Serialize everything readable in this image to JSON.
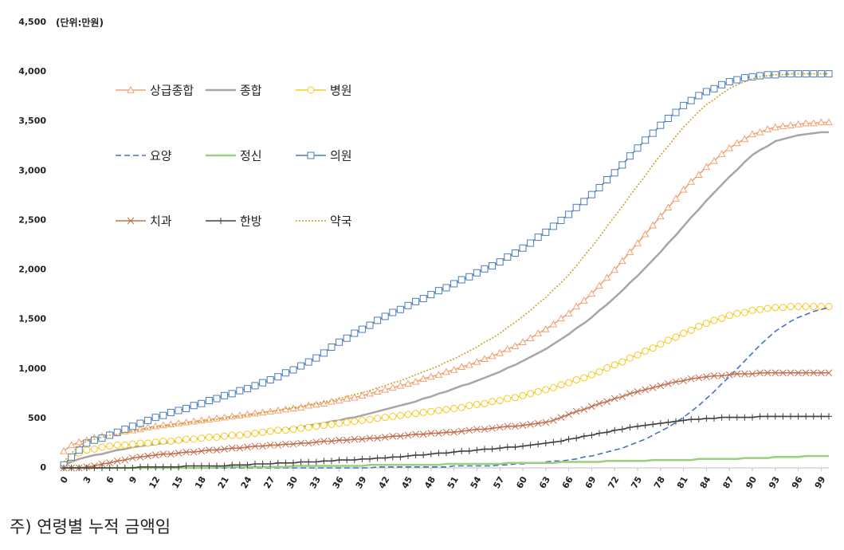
{
  "chart_data": {
    "type": "line",
    "unit_label": "(단위:만원)",
    "footnote": "주) 연령별 누적 금액임",
    "x": [
      0,
      1,
      2,
      3,
      4,
      5,
      6,
      7,
      8,
      9,
      10,
      11,
      12,
      13,
      14,
      15,
      16,
      17,
      18,
      19,
      20,
      21,
      22,
      23,
      24,
      25,
      26,
      27,
      28,
      29,
      30,
      31,
      32,
      33,
      34,
      35,
      36,
      37,
      38,
      39,
      40,
      41,
      42,
      43,
      44,
      45,
      46,
      47,
      48,
      49,
      50,
      51,
      52,
      53,
      54,
      55,
      56,
      57,
      58,
      59,
      60,
      61,
      62,
      63,
      64,
      65,
      66,
      67,
      68,
      69,
      70,
      71,
      72,
      73,
      74,
      75,
      76,
      77,
      78,
      79,
      80,
      81,
      82,
      83,
      84,
      85,
      86,
      87,
      88,
      89,
      90,
      91,
      92,
      93,
      94,
      95,
      96,
      97,
      98,
      99,
      100
    ],
    "xlim": [
      0,
      100
    ],
    "xticks": [
      0,
      3,
      6,
      9,
      12,
      15,
      18,
      21,
      24,
      27,
      30,
      33,
      36,
      39,
      42,
      45,
      48,
      51,
      54,
      57,
      60,
      63,
      66,
      69,
      72,
      75,
      78,
      81,
      84,
      87,
      90,
      93,
      96,
      99
    ],
    "ylim": [
      0,
      4500
    ],
    "yticks": [
      0,
      500,
      {
        "value": 1000,
        "label": "1,000"
      },
      {
        "value": 1500,
        "label": "1,500"
      },
      {
        "value": 2000,
        "label": "2,000"
      },
      {
        "value": 2500,
        "label": "2,500"
      },
      {
        "value": 3000,
        "label": "3,000"
      },
      {
        "value": 3500,
        "label": "3,500"
      },
      {
        "value": 4000,
        "label": "4,000"
      },
      {
        "value": 4500,
        "label": "4,500"
      }
    ],
    "grid": false,
    "series": [
      {
        "name": "상급종합",
        "color": "#f4a072",
        "marker": "triangle",
        "dash": "solid",
        "values": [
          170,
          230,
          260,
          280,
          300,
          320,
          340,
          350,
          370,
          380,
          390,
          410,
          420,
          430,
          440,
          450,
          460,
          470,
          480,
          490,
          500,
          510,
          520,
          530,
          540,
          550,
          560,
          570,
          580,
          590,
          600,
          610,
          630,
          640,
          650,
          670,
          680,
          700,
          710,
          730,
          750,
          770,
          790,
          810,
          830,
          850,
          870,
          900,
          920,
          940,
          970,
          990,
          1020,
          1040,
          1070,
          1100,
          1130,
          1160,
          1200,
          1230,
          1270,
          1310,
          1360,
          1400,
          1450,
          1510,
          1560,
          1630,
          1690,
          1760,
          1840,
          1920,
          2000,
          2090,
          2180,
          2270,
          2360,
          2450,
          2540,
          2630,
          2720,
          2810,
          2890,
          2960,
          3040,
          3100,
          3170,
          3230,
          3280,
          3320,
          3370,
          3390,
          3420,
          3440,
          3450,
          3460,
          3470,
          3480,
          3480,
          3490,
          3490
        ]
      },
      {
        "name": "종합",
        "color": "#a6a6a6",
        "marker": "none",
        "dash": "solid",
        "values": [
          30,
          60,
          90,
          110,
          130,
          140,
          160,
          180,
          190,
          210,
          220,
          230,
          240,
          250,
          260,
          270,
          280,
          290,
          300,
          310,
          310,
          320,
          330,
          330,
          340,
          350,
          360,
          370,
          380,
          390,
          400,
          410,
          430,
          440,
          450,
          470,
          480,
          500,
          510,
          530,
          550,
          570,
          590,
          610,
          630,
          650,
          670,
          700,
          720,
          750,
          770,
          800,
          830,
          850,
          880,
          910,
          940,
          970,
          1010,
          1040,
          1080,
          1120,
          1160,
          1200,
          1250,
          1300,
          1350,
          1410,
          1460,
          1520,
          1590,
          1650,
          1720,
          1790,
          1870,
          1940,
          2020,
          2100,
          2180,
          2270,
          2350,
          2440,
          2530,
          2610,
          2700,
          2780,
          2860,
          2940,
          3010,
          3090,
          3160,
          3210,
          3250,
          3300,
          3320,
          3340,
          3360,
          3370,
          3380,
          3390,
          3390
        ]
      },
      {
        "name": "병원",
        "color": "#f7c81e",
        "marker": "circle",
        "dash": "solid",
        "values": [
          20,
          100,
          150,
          180,
          190,
          210,
          220,
          230,
          230,
          240,
          250,
          250,
          260,
          270,
          270,
          280,
          290,
          290,
          300,
          310,
          310,
          320,
          330,
          330,
          340,
          350,
          360,
          370,
          380,
          380,
          390,
          400,
          410,
          420,
          430,
          440,
          450,
          460,
          470,
          480,
          490,
          500,
          510,
          520,
          530,
          540,
          550,
          560,
          570,
          580,
          590,
          600,
          610,
          630,
          640,
          650,
          670,
          680,
          700,
          710,
          730,
          750,
          770,
          790,
          810,
          840,
          860,
          890,
          910,
          940,
          970,
          1010,
          1040,
          1070,
          1110,
          1140,
          1180,
          1210,
          1250,
          1290,
          1320,
          1360,
          1390,
          1430,
          1460,
          1490,
          1510,
          1540,
          1560,
          1570,
          1590,
          1600,
          1610,
          1620,
          1620,
          1630,
          1630,
          1630,
          1630,
          1630,
          1630
        ]
      },
      {
        "name": "요양",
        "color": "#4472c4",
        "marker": "none",
        "dash": "dashed",
        "values": [
          0,
          0,
          0,
          0,
          0,
          0,
          0,
          0,
          0,
          0,
          0,
          0,
          0,
          0,
          0,
          0,
          0,
          0,
          0,
          0,
          0,
          0,
          0,
          0,
          0,
          0,
          0,
          0,
          0,
          0,
          0,
          0,
          0,
          0,
          0,
          0,
          0,
          0,
          0,
          0,
          0,
          10,
          10,
          10,
          10,
          10,
          10,
          10,
          10,
          10,
          10,
          20,
          20,
          20,
          20,
          20,
          20,
          30,
          30,
          40,
          40,
          50,
          50,
          60,
          70,
          70,
          80,
          90,
          110,
          120,
          140,
          160,
          180,
          200,
          230,
          260,
          290,
          330,
          370,
          410,
          460,
          510,
          570,
          630,
          700,
          770,
          850,
          920,
          1000,
          1080,
          1160,
          1240,
          1310,
          1380,
          1430,
          1480,
          1520,
          1550,
          1580,
          1600,
          1620
        ]
      },
      {
        "name": "정신",
        "color": "#9bcf7c",
        "marker": "none",
        "dash": "solid",
        "values": [
          0,
          0,
          0,
          0,
          0,
          0,
          0,
          0,
          0,
          0,
          0,
          0,
          0,
          0,
          0,
          0,
          0,
          0,
          0,
          0,
          10,
          10,
          10,
          10,
          10,
          10,
          10,
          10,
          10,
          10,
          20,
          20,
          20,
          20,
          20,
          20,
          20,
          20,
          20,
          20,
          30,
          30,
          30,
          30,
          30,
          30,
          30,
          30,
          30,
          30,
          40,
          40,
          40,
          40,
          40,
          40,
          40,
          40,
          50,
          50,
          50,
          50,
          50,
          50,
          50,
          60,
          60,
          60,
          60,
          60,
          60,
          70,
          70,
          70,
          70,
          70,
          70,
          80,
          80,
          80,
          80,
          80,
          80,
          90,
          90,
          90,
          90,
          90,
          90,
          100,
          100,
          100,
          100,
          110,
          110,
          110,
          110,
          120,
          120,
          120,
          120
        ]
      },
      {
        "name": "의원",
        "color": "#4a7ebb",
        "marker": "square",
        "dash": "solid",
        "values": [
          30,
          110,
          180,
          250,
          280,
          300,
          330,
          360,
          390,
          420,
          450,
          480,
          510,
          530,
          560,
          580,
          600,
          630,
          650,
          680,
          700,
          730,
          750,
          780,
          800,
          830,
          860,
          890,
          920,
          960,
          990,
          1030,
          1070,
          1110,
          1160,
          1220,
          1270,
          1310,
          1360,
          1400,
          1440,
          1490,
          1530,
          1570,
          1600,
          1640,
          1680,
          1710,
          1750,
          1790,
          1820,
          1860,
          1900,
          1930,
          1970,
          2010,
          2040,
          2080,
          2130,
          2170,
          2220,
          2270,
          2330,
          2380,
          2440,
          2500,
          2560,
          2630,
          2690,
          2760,
          2830,
          2910,
          2980,
          3060,
          3150,
          3230,
          3310,
          3380,
          3460,
          3530,
          3590,
          3660,
          3710,
          3760,
          3800,
          3830,
          3870,
          3900,
          3920,
          3940,
          3950,
          3960,
          3970,
          3970,
          3980,
          3980,
          3980,
          3980,
          3980,
          3980,
          3980
        ]
      },
      {
        "name": "치과",
        "color": "#c0704f",
        "marker": "x",
        "dash": "solid",
        "values": [
          0,
          0,
          0,
          10,
          20,
          40,
          50,
          70,
          80,
          100,
          110,
          120,
          130,
          140,
          140,
          150,
          160,
          160,
          170,
          180,
          180,
          190,
          200,
          200,
          210,
          220,
          220,
          230,
          230,
          240,
          240,
          250,
          250,
          260,
          270,
          270,
          280,
          280,
          290,
          290,
          300,
          300,
          310,
          320,
          320,
          330,
          340,
          340,
          350,
          350,
          360,
          360,
          370,
          380,
          390,
          390,
          400,
          410,
          420,
          420,
          430,
          440,
          450,
          460,
          480,
          510,
          540,
          570,
          590,
          620,
          650,
          670,
          700,
          720,
          750,
          770,
          790,
          810,
          830,
          850,
          870,
          880,
          900,
          910,
          920,
          930,
          930,
          940,
          950,
          950,
          950,
          960,
          960,
          960,
          960,
          960,
          960,
          960,
          960,
          960,
          960
        ]
      },
      {
        "name": "한방",
        "color": "#404040",
        "marker": "plus",
        "dash": "solid",
        "values": [
          0,
          0,
          0,
          0,
          0,
          0,
          0,
          0,
          0,
          0,
          10,
          10,
          10,
          10,
          10,
          10,
          20,
          20,
          20,
          20,
          20,
          20,
          30,
          30,
          30,
          40,
          40,
          40,
          50,
          50,
          50,
          60,
          60,
          60,
          70,
          70,
          80,
          80,
          80,
          90,
          90,
          100,
          100,
          110,
          110,
          120,
          130,
          130,
          140,
          150,
          150,
          160,
          170,
          170,
          180,
          190,
          190,
          200,
          210,
          210,
          220,
          230,
          240,
          250,
          260,
          270,
          290,
          300,
          320,
          330,
          350,
          360,
          380,
          390,
          410,
          420,
          430,
          440,
          450,
          460,
          470,
          480,
          490,
          490,
          500,
          500,
          510,
          510,
          510,
          510,
          510,
          520,
          520,
          520,
          520,
          520,
          520,
          520,
          520,
          520,
          520
        ]
      },
      {
        "name": "약국",
        "color": "#c9a227",
        "marker": "none",
        "dash": "dotted",
        "values": [
          60,
          150,
          220,
          270,
          290,
          310,
          330,
          340,
          360,
          370,
          380,
          400,
          410,
          420,
          430,
          440,
          450,
          460,
          470,
          480,
          490,
          500,
          510,
          520,
          530,
          540,
          560,
          570,
          580,
          600,
          610,
          620,
          640,
          650,
          670,
          680,
          700,
          720,
          740,
          760,
          780,
          810,
          830,
          860,
          880,
          910,
          940,
          970,
          1000,
          1030,
          1070,
          1100,
          1140,
          1180,
          1220,
          1270,
          1310,
          1360,
          1420,
          1470,
          1530,
          1590,
          1660,
          1720,
          1800,
          1870,
          1950,
          2040,
          2140,
          2230,
          2330,
          2440,
          2540,
          2640,
          2750,
          2850,
          2950,
          3060,
          3160,
          3250,
          3350,
          3440,
          3520,
          3600,
          3670,
          3720,
          3780,
          3830,
          3870,
          3900,
          3930,
          3950,
          3960,
          3970,
          3970,
          3980,
          3980,
          3980,
          3980,
          3980,
          3980
        ]
      }
    ]
  }
}
